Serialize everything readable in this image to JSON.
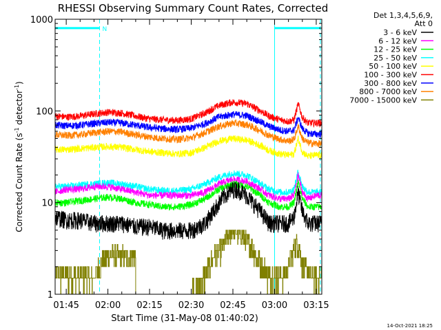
{
  "chart_data": {
    "type": "line",
    "title": "RHESSI Observing Summary Count Rates, Corrected",
    "xlabel": "Start Time (31-May-08 01:40:02)",
    "ylabel": "Corrected Count Rate (s⁻¹ detector⁻¹)",
    "ylabel_base": "Corrected Count Rate (s",
    "ylabel_sup1": "-1",
    "ylabel_mid": " detector",
    "ylabel_sup2": "-1",
    "ylabel_end": ")",
    "y_scale": "log",
    "ylim": [
      1,
      1000
    ],
    "xlim_minutes": [
      1.0,
      97.0
    ],
    "y_ticks": [
      {
        "value": 1,
        "label": "1"
      },
      {
        "value": 10,
        "label": "10"
      },
      {
        "value": 100,
        "label": "100"
      },
      {
        "value": 1000,
        "label": "1000"
      }
    ],
    "x_ticks": [
      {
        "minute": 5,
        "label": "01:45"
      },
      {
        "minute": 20,
        "label": "02:00"
      },
      {
        "minute": 35,
        "label": "02:15"
      },
      {
        "minute": 50,
        "label": "02:30"
      },
      {
        "minute": 65,
        "label": "02:45"
      },
      {
        "minute": 80,
        "label": "03:00"
      },
      {
        "minute": 95,
        "label": "03:15"
      }
    ],
    "legend": {
      "position": "top-right",
      "header": [
        "Det 1,3,4,5,6,9,",
        "Att 0"
      ]
    },
    "night_markers": {
      "color": "#00ffff",
      "label": "N",
      "solid_lines_minute": [
        1.0,
        80.0
      ],
      "dashed_lines_minute": [
        17.0,
        96.5
      ],
      "bars": [
        {
          "start_minute": 1.0,
          "end_minute": 17.0,
          "value": 800
        },
        {
          "start_minute": 80.0,
          "end_minute": 96.5,
          "value": 800
        }
      ]
    },
    "series": [
      {
        "name": "3 - 6 keV",
        "color": "#000000",
        "minutes": [
          1,
          5,
          10,
          15,
          20,
          25,
          30,
          35,
          40,
          45,
          50,
          55,
          60,
          62,
          65,
          67,
          70,
          75,
          78,
          82,
          85,
          87,
          88.5,
          90,
          92,
          95,
          97
        ],
        "values": [
          7,
          6.5,
          6.5,
          6,
          6,
          6,
          5.5,
          5.5,
          5,
          5,
          5,
          6,
          10,
          12,
          14,
          14,
          12,
          8,
          6,
          6,
          6,
          7,
          13,
          8,
          6,
          6,
          6
        ]
      },
      {
        "name": "6 - 12 keV",
        "color": "#ff00ff",
        "minutes": [
          1,
          5,
          10,
          15,
          20,
          25,
          30,
          35,
          40,
          45,
          50,
          55,
          60,
          65,
          70,
          75,
          78,
          82,
          85,
          87,
          88.5,
          90,
          92,
          95,
          97
        ],
        "values": [
          13,
          14,
          14,
          15,
          15,
          14,
          13,
          12,
          12,
          12,
          12,
          13,
          16,
          18,
          17,
          14,
          12,
          11,
          11,
          12,
          20,
          13,
          11,
          12,
          12
        ]
      },
      {
        "name": "12 - 25 keV",
        "color": "#00ff00",
        "minutes": [
          1,
          5,
          10,
          15,
          20,
          25,
          30,
          35,
          40,
          45,
          50,
          55,
          60,
          65,
          70,
          75,
          78,
          82,
          85,
          87,
          88.5,
          90,
          92,
          95,
          97
        ],
        "values": [
          10,
          10,
          10.5,
          11,
          11.5,
          11,
          10,
          9.5,
          9,
          9,
          9.5,
          11,
          14,
          16,
          15,
          12,
          10,
          9,
          9,
          10,
          17,
          11,
          9,
          9,
          9
        ]
      },
      {
        "name": "25 - 50 keV",
        "color": "#00ffff",
        "minutes": [
          1,
          5,
          10,
          15,
          20,
          25,
          30,
          35,
          40,
          45,
          50,
          55,
          60,
          65,
          70,
          75,
          78,
          82,
          85,
          87,
          88.5,
          90,
          92,
          95,
          97
        ],
        "values": [
          15,
          15,
          15.5,
          16,
          16.5,
          16,
          15,
          14,
          13.5,
          13.5,
          14,
          16,
          19,
          21,
          20,
          16,
          14,
          13,
          13,
          14,
          22,
          15,
          13,
          13,
          13
        ]
      },
      {
        "name": "50 - 100 keV",
        "color": "#ffff00",
        "minutes": [
          1,
          5,
          10,
          15,
          20,
          25,
          30,
          35,
          40,
          45,
          50,
          55,
          60,
          65,
          70,
          75,
          78,
          82,
          85,
          87,
          88.5,
          90,
          92,
          95,
          97
        ],
        "values": [
          38,
          38,
          39,
          40,
          41,
          40,
          38,
          36,
          35,
          34,
          35,
          40,
          47,
          50,
          48,
          42,
          37,
          34,
          33,
          34,
          50,
          36,
          32,
          33,
          33
        ]
      },
      {
        "name": "100 - 300 keV",
        "color": "#ff0000",
        "minutes": [
          1,
          5,
          10,
          15,
          20,
          25,
          30,
          35,
          40,
          45,
          50,
          55,
          60,
          65,
          70,
          75,
          78,
          82,
          85,
          87,
          88.5,
          90,
          92,
          95,
          97
        ],
        "values": [
          88,
          86,
          88,
          93,
          97,
          95,
          88,
          82,
          80,
          79,
          82,
          95,
          115,
          125,
          120,
          100,
          88,
          80,
          77,
          80,
          120,
          85,
          74,
          74,
          74
        ]
      },
      {
        "name": "300 - 800 keV",
        "color": "#0000ff",
        "minutes": [
          1,
          5,
          10,
          15,
          20,
          25,
          30,
          35,
          40,
          45,
          50,
          55,
          60,
          65,
          70,
          75,
          78,
          82,
          85,
          87,
          88.5,
          90,
          92,
          95,
          97
        ],
        "values": [
          70,
          69,
          70,
          73,
          75,
          74,
          70,
          66,
          64,
          63,
          65,
          73,
          86,
          92,
          89,
          76,
          68,
          62,
          60,
          62,
          85,
          64,
          57,
          56,
          56
        ]
      },
      {
        "name": "800 - 7000 keV",
        "color": "#ff8000",
        "minutes": [
          1,
          5,
          10,
          15,
          20,
          25,
          30,
          35,
          40,
          45,
          50,
          55,
          60,
          65,
          70,
          75,
          78,
          82,
          85,
          87,
          88.5,
          90,
          92,
          95,
          97
        ],
        "values": [
          55,
          54,
          55,
          58,
          60,
          59,
          55,
          52,
          50,
          49,
          51,
          58,
          68,
          74,
          71,
          61,
          54,
          49,
          47,
          49,
          68,
          50,
          45,
          44,
          44
        ]
      },
      {
        "name": "7000 - 15000 keV",
        "color": "#808000",
        "minutes": [
          1,
          10,
          15,
          17,
          20,
          30,
          40,
          50,
          55,
          58,
          61,
          63,
          65,
          67,
          69,
          72,
          75,
          78,
          80,
          84,
          85,
          86,
          87,
          88,
          89,
          90,
          93,
          97
        ],
        "values": [
          1.5,
          1.5,
          1.5,
          2,
          2.5,
          2.5,
          1,
          1,
          1.5,
          2.5,
          3,
          4,
          5,
          4.5,
          4,
          3,
          2,
          1.5,
          1.5,
          1.5,
          2,
          2.5,
          3,
          3.5,
          3,
          2,
          1.5,
          1.5
        ]
      }
    ]
  },
  "footer_date": "14-Oct-2021 18:25"
}
